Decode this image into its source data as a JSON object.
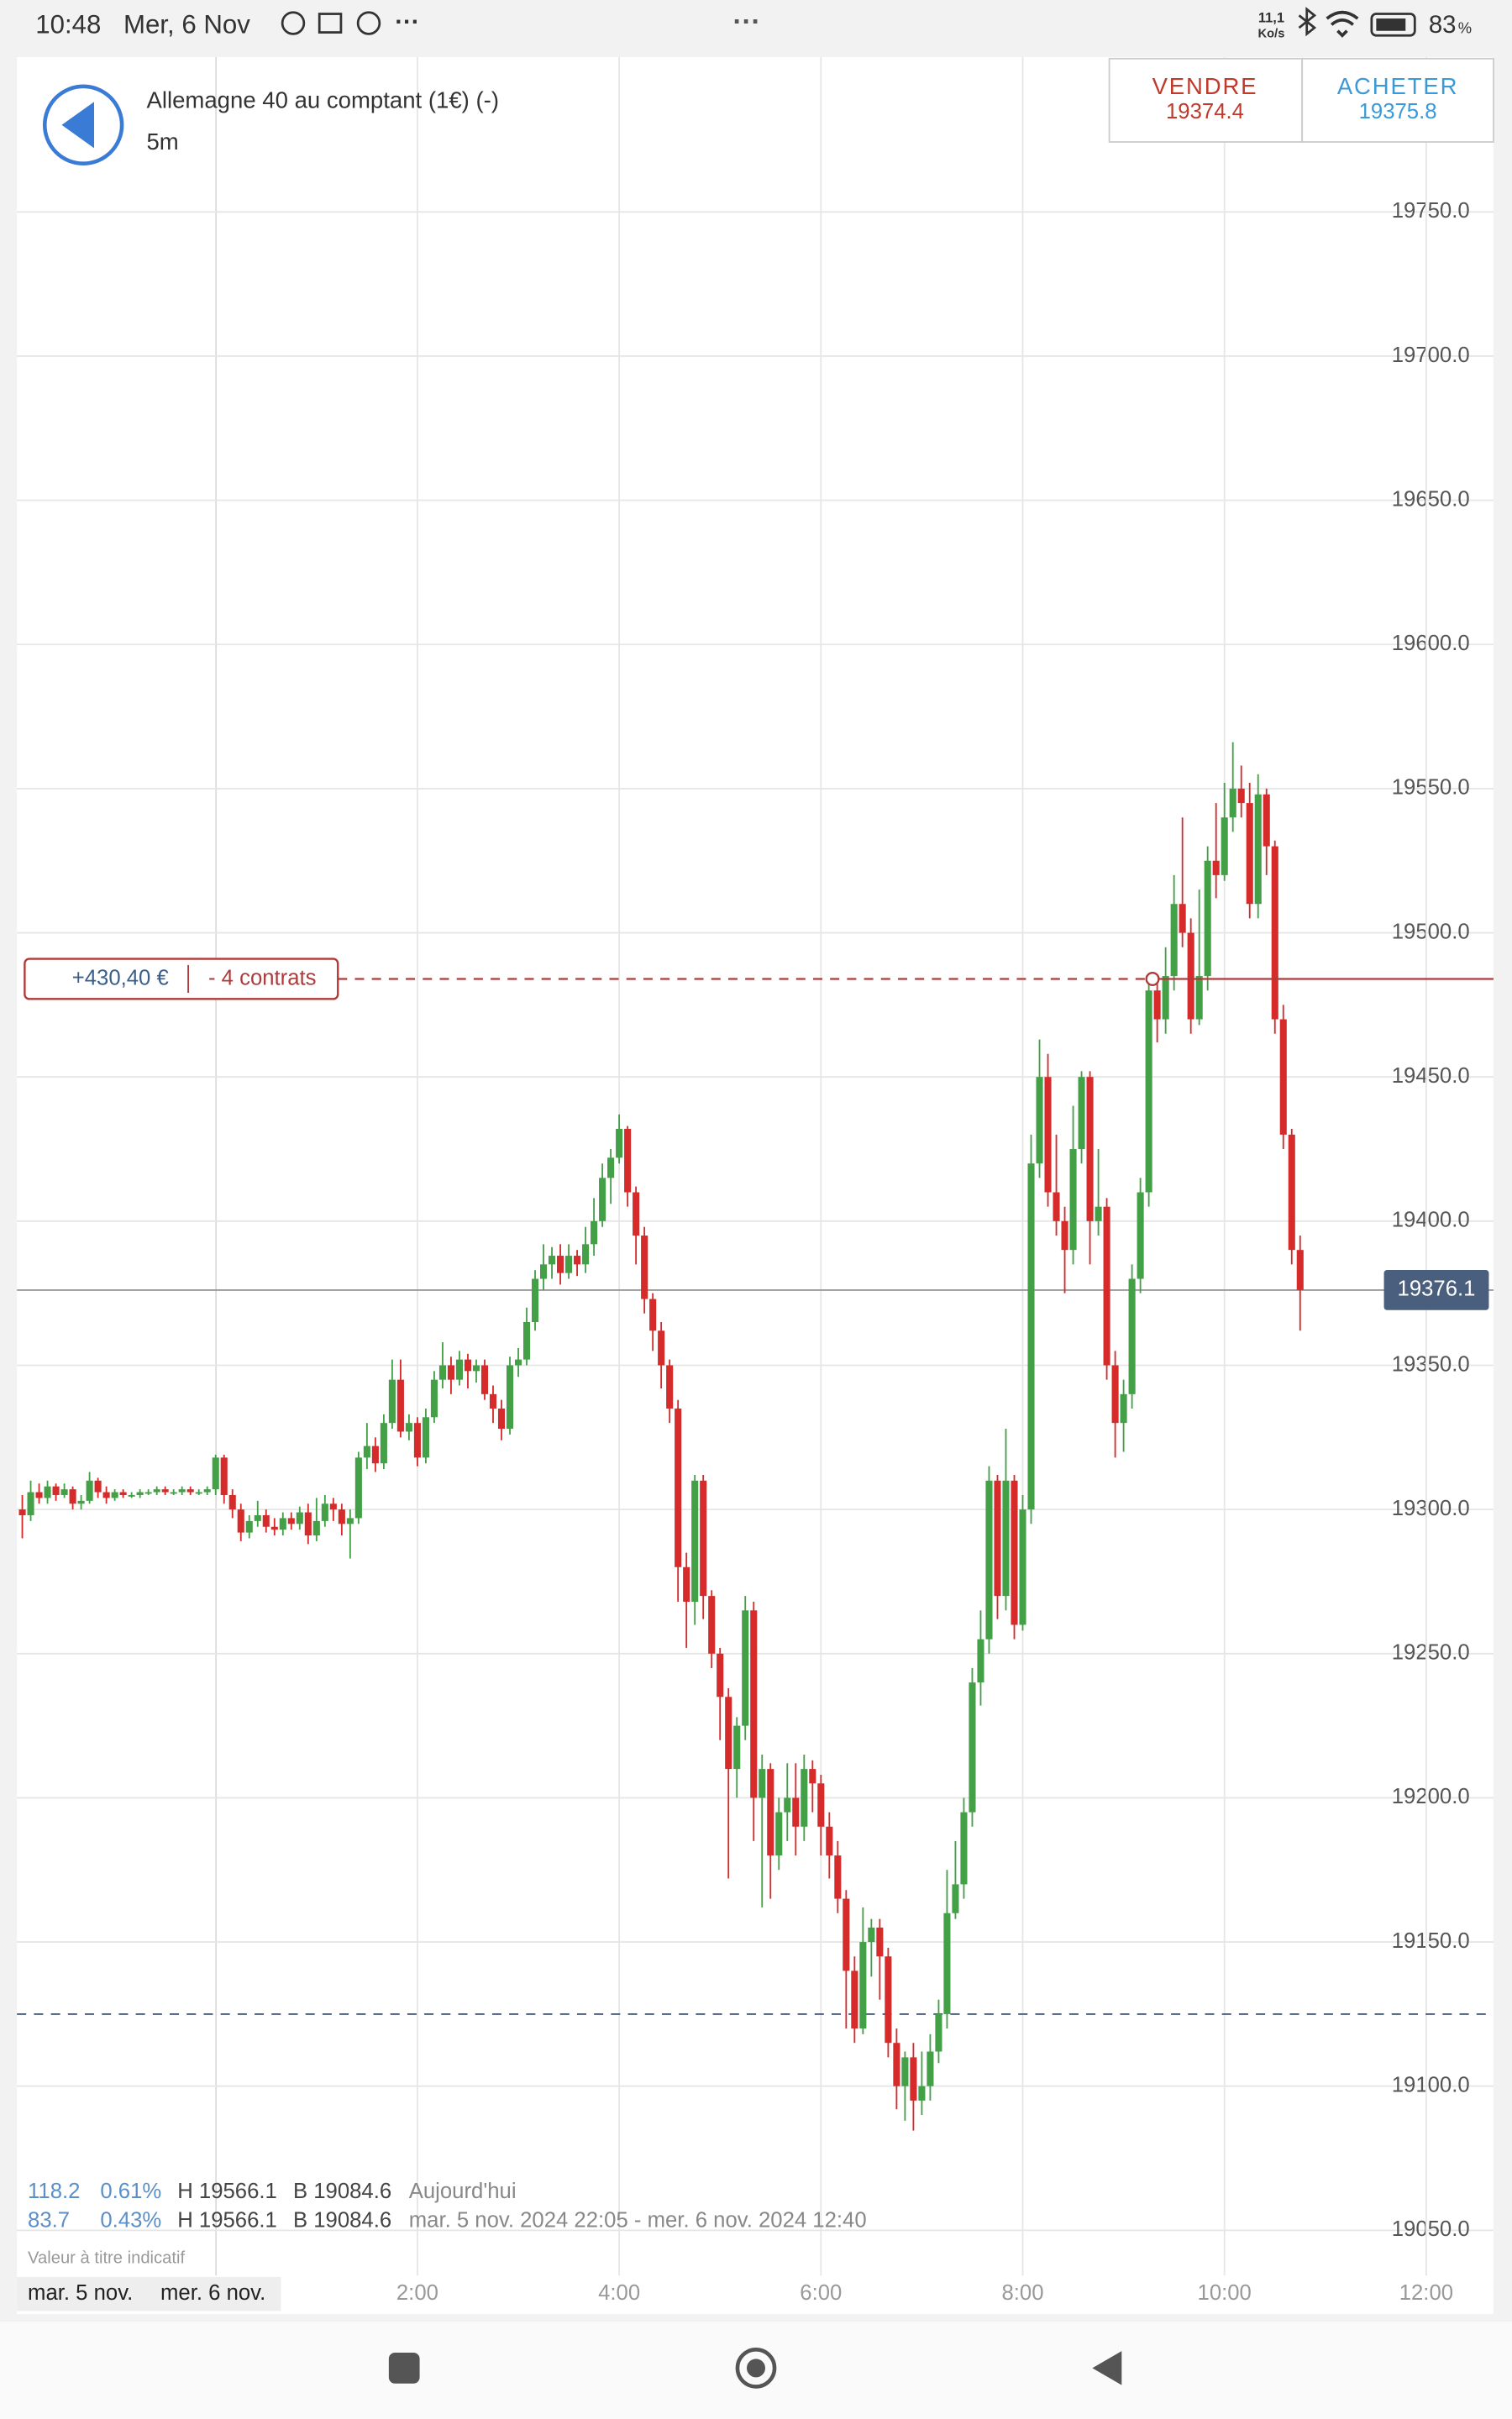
{
  "status_bar": {
    "time": "10:48",
    "date": "Mer, 6 Nov",
    "speed": "11,1",
    "speed_unit": "Ko/s",
    "battery": "83",
    "battery_unit": "%"
  },
  "header": {
    "instrument": "Allemagne 40 au comptant (1€) (-)",
    "interval": "5m",
    "sell_label": "VENDRE",
    "sell_price": "19374.4",
    "buy_label": "ACHETER",
    "buy_price": "19375.8"
  },
  "position": {
    "pnl": "+430,40 €",
    "contracts": "- 4 contrats"
  },
  "stats": {
    "rows": [
      [
        "118.2",
        "0.61%",
        "H 19566.1",
        "B 19084.6",
        "Aujourd'hui"
      ],
      [
        "83.7",
        "0.43%",
        "H 19566.1",
        "B 19084.6",
        "mar. 5 nov. 2024 22:05 - mer. 6 nov. 2024 12:40"
      ]
    ],
    "note": "Valeur à titre indicatif"
  },
  "date_labels": [
    "mar. 5 nov.",
    "mer. 6 nov."
  ],
  "chart_data": {
    "type": "candlestick",
    "x": [
      "22:05",
      "22:10",
      "22:15",
      "22:20",
      "22:25",
      "22:30",
      "22:35",
      "22:40",
      "22:45",
      "22:50",
      "22:55",
      "23:00",
      "23:05",
      "23:10",
      "23:15",
      "23:20",
      "23:25",
      "23:30",
      "23:35",
      "23:40",
      "23:45",
      "23:50",
      "23:55",
      "0:00",
      "0:05",
      "0:10",
      "0:15",
      "0:20",
      "0:25",
      "0:30",
      "0:35",
      "0:40",
      "0:45",
      "0:50",
      "0:55",
      "1:00",
      "1:05",
      "1:10",
      "1:15",
      "1:20",
      "1:25",
      "1:30",
      "1:35",
      "1:40",
      "1:45",
      "1:50",
      "1:55",
      "2:00",
      "2:05",
      "2:10",
      "2:15",
      "2:20",
      "2:25",
      "2:30",
      "2:35",
      "2:40",
      "2:45",
      "2:50",
      "2:55",
      "3:00",
      "3:05",
      "3:10",
      "3:15",
      "3:20",
      "3:25",
      "3:30",
      "3:35",
      "3:40",
      "3:45",
      "3:50",
      "3:55",
      "4:00",
      "4:05",
      "4:10",
      "4:15",
      "4:20",
      "4:25",
      "4:30",
      "4:35",
      "4:40",
      "4:45",
      "4:50",
      "4:55",
      "5:00",
      "5:05",
      "5:10",
      "5:15",
      "5:20",
      "5:25",
      "5:30",
      "5:35",
      "5:40",
      "5:45",
      "5:50",
      "5:55",
      "6:00",
      "6:05",
      "6:10",
      "6:15",
      "6:20",
      "6:25",
      "6:30",
      "6:35",
      "6:40",
      "6:45",
      "6:50",
      "6:55",
      "7:00",
      "7:05",
      "7:10",
      "7:15",
      "7:20",
      "7:25",
      "7:30",
      "7:35",
      "7:40",
      "7:45",
      "7:50",
      "7:55",
      "8:00",
      "8:05",
      "8:10",
      "8:15",
      "8:20",
      "8:25",
      "8:30",
      "8:35",
      "8:40",
      "8:45",
      "8:50",
      "8:55",
      "9:00",
      "9:05",
      "9:10",
      "9:15",
      "9:20",
      "9:25",
      "9:30",
      "9:35",
      "9:40",
      "9:45",
      "9:50",
      "9:55",
      "10:00",
      "10:05",
      "10:10",
      "10:15",
      "10:20",
      "10:25",
      "10:30",
      "10:35",
      "10:40",
      "10:45"
    ],
    "open": [
      19300,
      19298,
      19306,
      19304,
      19308,
      19305,
      19307,
      19302,
      19303,
      19310,
      19306,
      19304,
      19306,
      19305,
      19305,
      19306,
      19306,
      19307,
      19306,
      19306,
      19307,
      19306,
      19306,
      19307,
      19318,
      19305,
      19300,
      19292,
      19296,
      19298,
      19294,
      19293,
      19297,
      19295,
      19299,
      19291,
      19296,
      19302,
      19300,
      19295,
      19297,
      19318,
      19322,
      19316,
      19330,
      19345,
      19327,
      19330,
      19318,
      19332,
      19345,
      19350,
      19345,
      19352,
      19348,
      19350,
      19340,
      19335,
      19328,
      19350,
      19352,
      19365,
      19380,
      19385,
      19388,
      19382,
      19388,
      19385,
      19392,
      19400,
      19415,
      19422,
      19432,
      19410,
      19395,
      19373,
      19362,
      19350,
      19335,
      19280,
      19268,
      19310,
      19270,
      19250,
      19235,
      19210,
      19225,
      19265,
      19200,
      19210,
      19180,
      19195,
      19200,
      19190,
      19210,
      19205,
      19190,
      19180,
      19165,
      19140,
      19120,
      19150,
      19155,
      19145,
      19115,
      19100,
      19110,
      19095,
      19100,
      19112,
      19125,
      19160,
      19170,
      19195,
      19240,
      19255,
      19310,
      19270,
      19310,
      19260,
      19300,
      19420,
      19450,
      19410,
      19400,
      19390,
      19425,
      19450,
      19400,
      19405,
      19350,
      19330,
      19340,
      19380,
      19410,
      19480,
      19470,
      19485,
      19510,
      19500,
      19470,
      19485,
      19525,
      19520,
      19540,
      19550,
      19545,
      19510,
      19548,
      19530,
      19470,
      19430,
      19390
    ],
    "high": [
      19305,
      19310,
      19309,
      19310,
      19309,
      19309,
      19308,
      19305,
      19313,
      19311,
      19308,
      19307,
      19307,
      19306,
      19307,
      19307,
      19308,
      19308,
      19307,
      19308,
      19308,
      19307,
      19308,
      19319,
      19319,
      19307,
      19302,
      19298,
      19303,
      19300,
      19297,
      19299,
      19299,
      19301,
      19302,
      19304,
      19305,
      19304,
      19302,
      19300,
      19320,
      19330,
      19325,
      19333,
      19352,
      19352,
      19333,
      19332,
      19335,
      19348,
      19358,
      19353,
      19355,
      19354,
      19352,
      19352,
      19343,
      19338,
      19353,
      19356,
      19370,
      19383,
      19392,
      19391,
      19392,
      19392,
      19390,
      19398,
      19408,
      19420,
      19425,
      19437,
      19433,
      19412,
      19398,
      19375,
      19365,
      19352,
      19338,
      19285,
      19312,
      19312,
      19272,
      19252,
      19238,
      19228,
      19270,
      19268,
      19215,
      19212,
      19200,
      19212,
      19212,
      19215,
      19213,
      19208,
      19195,
      19185,
      19168,
      19145,
      19162,
      19158,
      19158,
      19148,
      19120,
      19112,
      19115,
      19112,
      19118,
      19130,
      19175,
      19185,
      19200,
      19245,
      19265,
      19315,
      19312,
      19328,
      19312,
      19305,
      19430,
      19463,
      19458,
      19430,
      19405,
      19440,
      19452,
      19452,
      19425,
      19408,
      19355,
      19345,
      19385,
      19415,
      19485,
      19485,
      19495,
      19520,
      19540,
      19505,
      19515,
      19530,
      19545,
      19552,
      19566.1,
      19558,
      19552,
      19555,
      19550,
      19532,
      19475,
      19432,
      19395
    ],
    "low": [
      19290,
      19296,
      19302,
      19302,
      19303,
      19304,
      19300,
      19300,
      19302,
      19304,
      19302,
      19303,
      19304,
      19304,
      19304,
      19305,
      19305,
      19305,
      19305,
      19305,
      19305,
      19305,
      19305,
      19305,
      19302,
      19297,
      19289,
      19290,
      19294,
      19292,
      19291,
      19291,
      19293,
      19293,
      19288,
      19289,
      19294,
      19296,
      19291,
      19283,
      19295,
      19314,
      19313,
      19314,
      19328,
      19325,
      19324,
      19315,
      19316,
      19330,
      19342,
      19340,
      19343,
      19342,
      19344,
      19338,
      19330,
      19324,
      19326,
      19346,
      19350,
      19362,
      19376,
      19380,
      19378,
      19380,
      19381,
      19382,
      19388,
      19398,
      19406,
      19420,
      19405,
      19385,
      19368,
      19355,
      19342,
      19330,
      19268,
      19252,
      19260,
      19262,
      19245,
      19220,
      19172,
      19200,
      19220,
      19185,
      19162,
      19165,
      19175,
      19185,
      19180,
      19185,
      19195,
      19180,
      19172,
      19160,
      19120,
      19115,
      19118,
      19138,
      19130,
      19110,
      19092,
      19088,
      19084.6,
      19090,
      19095,
      19108,
      19120,
      19158,
      19165,
      19190,
      19232,
      19250,
      19262,
      19265,
      19255,
      19258,
      19295,
      19415,
      19405,
      19395,
      19375,
      19385,
      19420,
      19385,
      19395,
      19345,
      19318,
      19320,
      19335,
      19375,
      19405,
      19462,
      19465,
      19480,
      19495,
      19465,
      19468,
      19480,
      19512,
      19518,
      19535,
      19540,
      19505,
      19505,
      19520,
      19465,
      19425,
      19385,
      19362
    ],
    "close": [
      19298,
      19306,
      19304,
      19308,
      19305,
      19307,
      19302,
      19303,
      19310,
      19306,
      19304,
      19306,
      19305,
      19305,
      19306,
      19306,
      19307,
      19306,
      19306,
      19307,
      19306,
      19306,
      19307,
      19318,
      19305,
      19300,
      19292,
      19296,
      19298,
      19294,
      19293,
      19297,
      19295,
      19299,
      19291,
      19296,
      19302,
      19300,
      19295,
      19297,
      19318,
      19322,
      19316,
      19330,
      19345,
      19327,
      19330,
      19318,
      19332,
      19345,
      19350,
      19345,
      19352,
      19348,
      19350,
      19340,
      19335,
      19328,
      19350,
      19352,
      19365,
      19380,
      19385,
      19388,
      19382,
      19388,
      19385,
      19392,
      19400,
      19415,
      19422,
      19432,
      19410,
      19395,
      19373,
      19362,
      19350,
      19335,
      19280,
      19268,
      19310,
      19270,
      19250,
      19235,
      19210,
      19225,
      19265,
      19200,
      19210,
      19180,
      19195,
      19200,
      19190,
      19210,
      19205,
      19190,
      19180,
      19165,
      19140,
      19120,
      19150,
      19155,
      19145,
      19115,
      19100,
      19110,
      19095,
      19100,
      19112,
      19125,
      19160,
      19170,
      19195,
      19240,
      19255,
      19310,
      19270,
      19310,
      19260,
      19300,
      19420,
      19450,
      19410,
      19400,
      19390,
      19425,
      19450,
      19400,
      19405,
      19350,
      19330,
      19340,
      19380,
      19410,
      19480,
      19470,
      19485,
      19510,
      19500,
      19470,
      19485,
      19525,
      19520,
      19540,
      19550,
      19545,
      19510,
      19548,
      19530,
      19470,
      19430,
      19390,
      19376.1
    ],
    "up_color": "#43a047",
    "down_color": "#d62b2b",
    "last": {
      "value": 19376.1,
      "label": "19376.1"
    },
    "position_level": 19484,
    "order_level": 19125,
    "xlim": [
      "22:00",
      "12:40"
    ],
    "xticks": [
      "2:00",
      "4:00",
      "6:00",
      "8:00",
      "10:00",
      "12:00"
    ],
    "ylim": [
      19037,
      19770
    ],
    "yticks": [
      {
        "value": 19050,
        "label": "19050.0"
      },
      {
        "value": 19100,
        "label": "19100.0"
      },
      {
        "value": 19150,
        "label": "19150.0"
      },
      {
        "value": 19200,
        "label": "19200.0"
      },
      {
        "value": 19250,
        "label": "19250.0"
      },
      {
        "value": 19300,
        "label": "19300.0"
      },
      {
        "value": 19350,
        "label": "19350.0"
      },
      {
        "value": 19400,
        "label": "19400.0"
      },
      {
        "value": 19450,
        "label": "19450.0"
      },
      {
        "value": 19500,
        "label": "19500.0"
      },
      {
        "value": 19550,
        "label": "19550.0"
      },
      {
        "value": 19600,
        "label": "19600.0"
      },
      {
        "value": 19650,
        "label": "19650.0"
      },
      {
        "value": 19700,
        "label": "19700.0"
      },
      {
        "value": 19750,
        "label": "19750.0"
      }
    ],
    "grid": true
  }
}
